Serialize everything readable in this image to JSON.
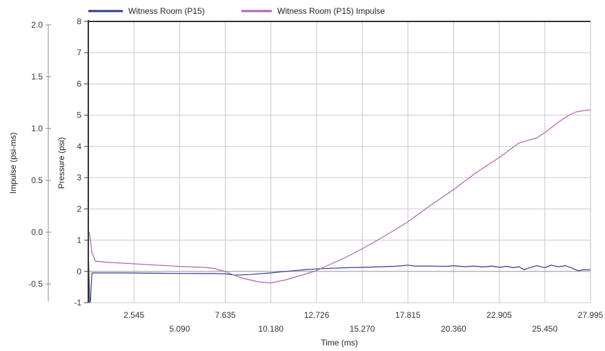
{
  "chart_data": {
    "type": "line",
    "legend": {
      "position": "top-left"
    },
    "grid": true,
    "x_axis": {
      "title": "Time (ms)",
      "range": [
        0,
        27.995
      ],
      "ticks_upper": [
        "2.545",
        "7.635",
        "12.726",
        "17.815",
        "22.905",
        "27.995"
      ],
      "ticks_lower": [
        "5.090",
        "10.180",
        "15.270",
        "20.360",
        "25.450"
      ],
      "tick_values": [
        2.545,
        5.09,
        7.635,
        10.18,
        12.726,
        15.27,
        17.815,
        20.36,
        22.905,
        25.45,
        27.995
      ]
    },
    "y_left_outer": {
      "title": "Impulse (psi-ms)",
      "range": [
        -0.7,
        2.0
      ],
      "ticks": [
        {
          "value": 2.0,
          "label": "2.0"
        },
        {
          "value": 1.5,
          "label": "1.5"
        },
        {
          "value": 1.0,
          "label": "1.0"
        },
        {
          "value": 0.5,
          "label": "0.5"
        },
        {
          "value": 0.0,
          "label": "0.0"
        },
        {
          "value": -0.5,
          "label": "-0.5"
        }
      ]
    },
    "y_left_inner": {
      "title": "Pressure (psi)",
      "range": [
        -1,
        8
      ],
      "ticks": [
        {
          "value": 8,
          "label": "8"
        },
        {
          "value": 7,
          "label": "7"
        },
        {
          "value": 6,
          "label": "6"
        },
        {
          "value": 5,
          "label": "5"
        },
        {
          "value": 4,
          "label": "4"
        },
        {
          "value": 3,
          "label": "3"
        },
        {
          "value": 2,
          "label": "2"
        },
        {
          "value": 1,
          "label": "1"
        },
        {
          "value": 0,
          "label": "0"
        },
        {
          "value": -1,
          "label": "-1"
        }
      ]
    },
    "series": [
      {
        "name": "Witness Room (P15)",
        "color": "#2b3a8c",
        "axis": "pressure",
        "x": [
          0.0,
          0.08,
          0.12,
          0.2,
          0.3,
          1.0,
          2.0,
          4.0,
          6.0,
          7.0,
          7.635,
          8.2,
          9.0,
          10.18,
          11.0,
          12.0,
          12.726,
          13.5,
          14.5,
          15.27,
          16.0,
          17.0,
          17.5,
          17.815,
          18.2,
          19.0,
          20.0,
          20.36,
          21.0,
          21.5,
          22.0,
          22.5,
          22.905,
          23.3,
          23.7,
          24.0,
          24.3,
          24.5,
          25.0,
          25.45,
          25.8,
          26.2,
          26.6,
          27.0,
          27.3,
          27.6,
          27.995
        ],
        "y": [
          0.7,
          -1.0,
          -0.95,
          -0.05,
          -0.05,
          -0.05,
          -0.05,
          -0.06,
          -0.07,
          -0.07,
          -0.08,
          -0.12,
          -0.1,
          -0.05,
          0.0,
          0.05,
          0.08,
          0.1,
          0.12,
          0.13,
          0.14,
          0.16,
          0.18,
          0.2,
          0.17,
          0.17,
          0.16,
          0.18,
          0.15,
          0.17,
          0.14,
          0.17,
          0.13,
          0.16,
          0.12,
          0.15,
          0.05,
          0.1,
          0.18,
          0.12,
          0.2,
          0.15,
          0.18,
          0.1,
          0.02,
          0.05,
          0.05
        ]
      },
      {
        "name": "Witness Room (P15) Impulse",
        "color": "#b05fb3",
        "axis": "impulse",
        "x": [
          0.0,
          0.05,
          0.1,
          0.2,
          0.4,
          1.0,
          3.0,
          5.0,
          6.5,
          7.0,
          7.635,
          8.5,
          9.5,
          10.18,
          11.0,
          12.0,
          12.726,
          13.5,
          14.5,
          15.27,
          16.5,
          17.815,
          19.0,
          20.36,
          21.5,
          22.905,
          24.0,
          25.0,
          25.45,
          26.2,
          26.8,
          27.2,
          27.5,
          27.995
        ],
        "y": [
          -0.02,
          0.0,
          -0.05,
          -0.2,
          -0.28,
          -0.29,
          -0.31,
          -0.33,
          -0.34,
          -0.35,
          -0.38,
          -0.44,
          -0.48,
          -0.49,
          -0.46,
          -0.41,
          -0.37,
          -0.31,
          -0.23,
          -0.16,
          -0.04,
          0.1,
          0.25,
          0.41,
          0.56,
          0.72,
          0.86,
          0.91,
          0.96,
          1.06,
          1.13,
          1.16,
          1.17,
          1.18
        ]
      }
    ]
  }
}
